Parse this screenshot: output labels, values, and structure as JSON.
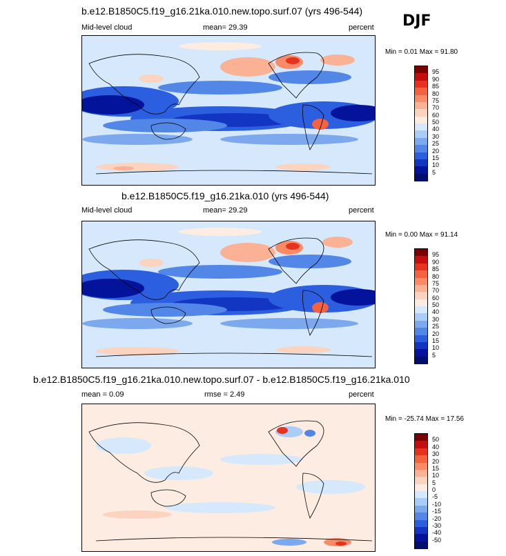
{
  "season": "DJF",
  "panels": [
    {
      "title": "b.e12.B1850C5.f19_g16.21ka.010.new.topo.surf.07 (yrs 496-544)",
      "left": "Mid-level cloud",
      "center": "mean=  29.39",
      "right": "percent",
      "minmax": "Min =  0.01 Max =  91.80"
    },
    {
      "title": "b.e12.B1850C5.f19_g16.21ka.010 (yrs 496-544)",
      "left": "Mid-level cloud",
      "center": "mean=  29.29",
      "right": "percent",
      "minmax": "Min =  0.00 Max =  91.14"
    },
    {
      "title": "b.e12.B1850C5.f19_g16.21ka.010.new.topo.surf.07 - b.e12.B1850C5.f19_g16.21ka.010",
      "left": "mean =   0.09",
      "center": "rmse =   2.49",
      "right": "percent",
      "minmax": "Min = -25.74 Max =  17.56"
    }
  ],
  "colorbars": {
    "absolute": {
      "labels": [
        "95",
        "90",
        "85",
        "80",
        "75",
        "70",
        "60",
        "50",
        "40",
        "30",
        "25",
        "20",
        "15",
        "10",
        "5"
      ],
      "colors": [
        "#7a0000",
        "#c40e0e",
        "#e8321f",
        "#f4623f",
        "#f98c67",
        "#fbb294",
        "#fcd3bf",
        "#fdece2",
        "#d6e8fb",
        "#a9cdf6",
        "#7ca8ee",
        "#5287e8",
        "#2c5fdf",
        "#1236c2",
        "#03149a",
        "#000f6e"
      ]
    },
    "difference": {
      "labels": [
        "50",
        "40",
        "30",
        "20",
        "15",
        "10",
        "5",
        "0",
        "-5",
        "-10",
        "-15",
        "-20",
        "-30",
        "-40",
        "-50"
      ],
      "colors": [
        "#7a0000",
        "#c40e0e",
        "#e8321f",
        "#f4623f",
        "#f98c67",
        "#fbb294",
        "#fcd3bf",
        "#fdece2",
        "#d6e8fb",
        "#a9cdf6",
        "#7ca8ee",
        "#5287e8",
        "#2c5fdf",
        "#1236c2",
        "#03149a",
        "#000f6e"
      ]
    }
  },
  "chart_data": [
    {
      "type": "heatmap",
      "title": "b.e12.B1850C5.f19_g16.21ka.010.new.topo.surf.07 (yrs 496-544)",
      "variable": "Mid-level cloud",
      "units": "percent",
      "season": "DJF",
      "mean": 29.39,
      "min": 0.01,
      "max": 91.8,
      "contour_levels": [
        5,
        10,
        15,
        20,
        25,
        30,
        40,
        50,
        60,
        70,
        75,
        80,
        85,
        90,
        95
      ]
    },
    {
      "type": "heatmap",
      "title": "b.e12.B1850C5.f19_g16.21ka.010 (yrs 496-544)",
      "variable": "Mid-level cloud",
      "units": "percent",
      "season": "DJF",
      "mean": 29.29,
      "min": 0.0,
      "max": 91.14,
      "contour_levels": [
        5,
        10,
        15,
        20,
        25,
        30,
        40,
        50,
        60,
        70,
        75,
        80,
        85,
        90,
        95
      ]
    },
    {
      "type": "heatmap",
      "title": "b.e12.B1850C5.f19_g16.21ka.010.new.topo.surf.07 - b.e12.B1850C5.f19_g16.21ka.010",
      "units": "percent",
      "season": "DJF",
      "mean": 0.09,
      "rmse": 2.49,
      "min": -25.74,
      "max": 17.56,
      "contour_levels": [
        -50,
        -40,
        -30,
        -20,
        -15,
        -10,
        -5,
        0,
        5,
        10,
        15,
        20,
        30,
        40,
        50
      ]
    }
  ]
}
